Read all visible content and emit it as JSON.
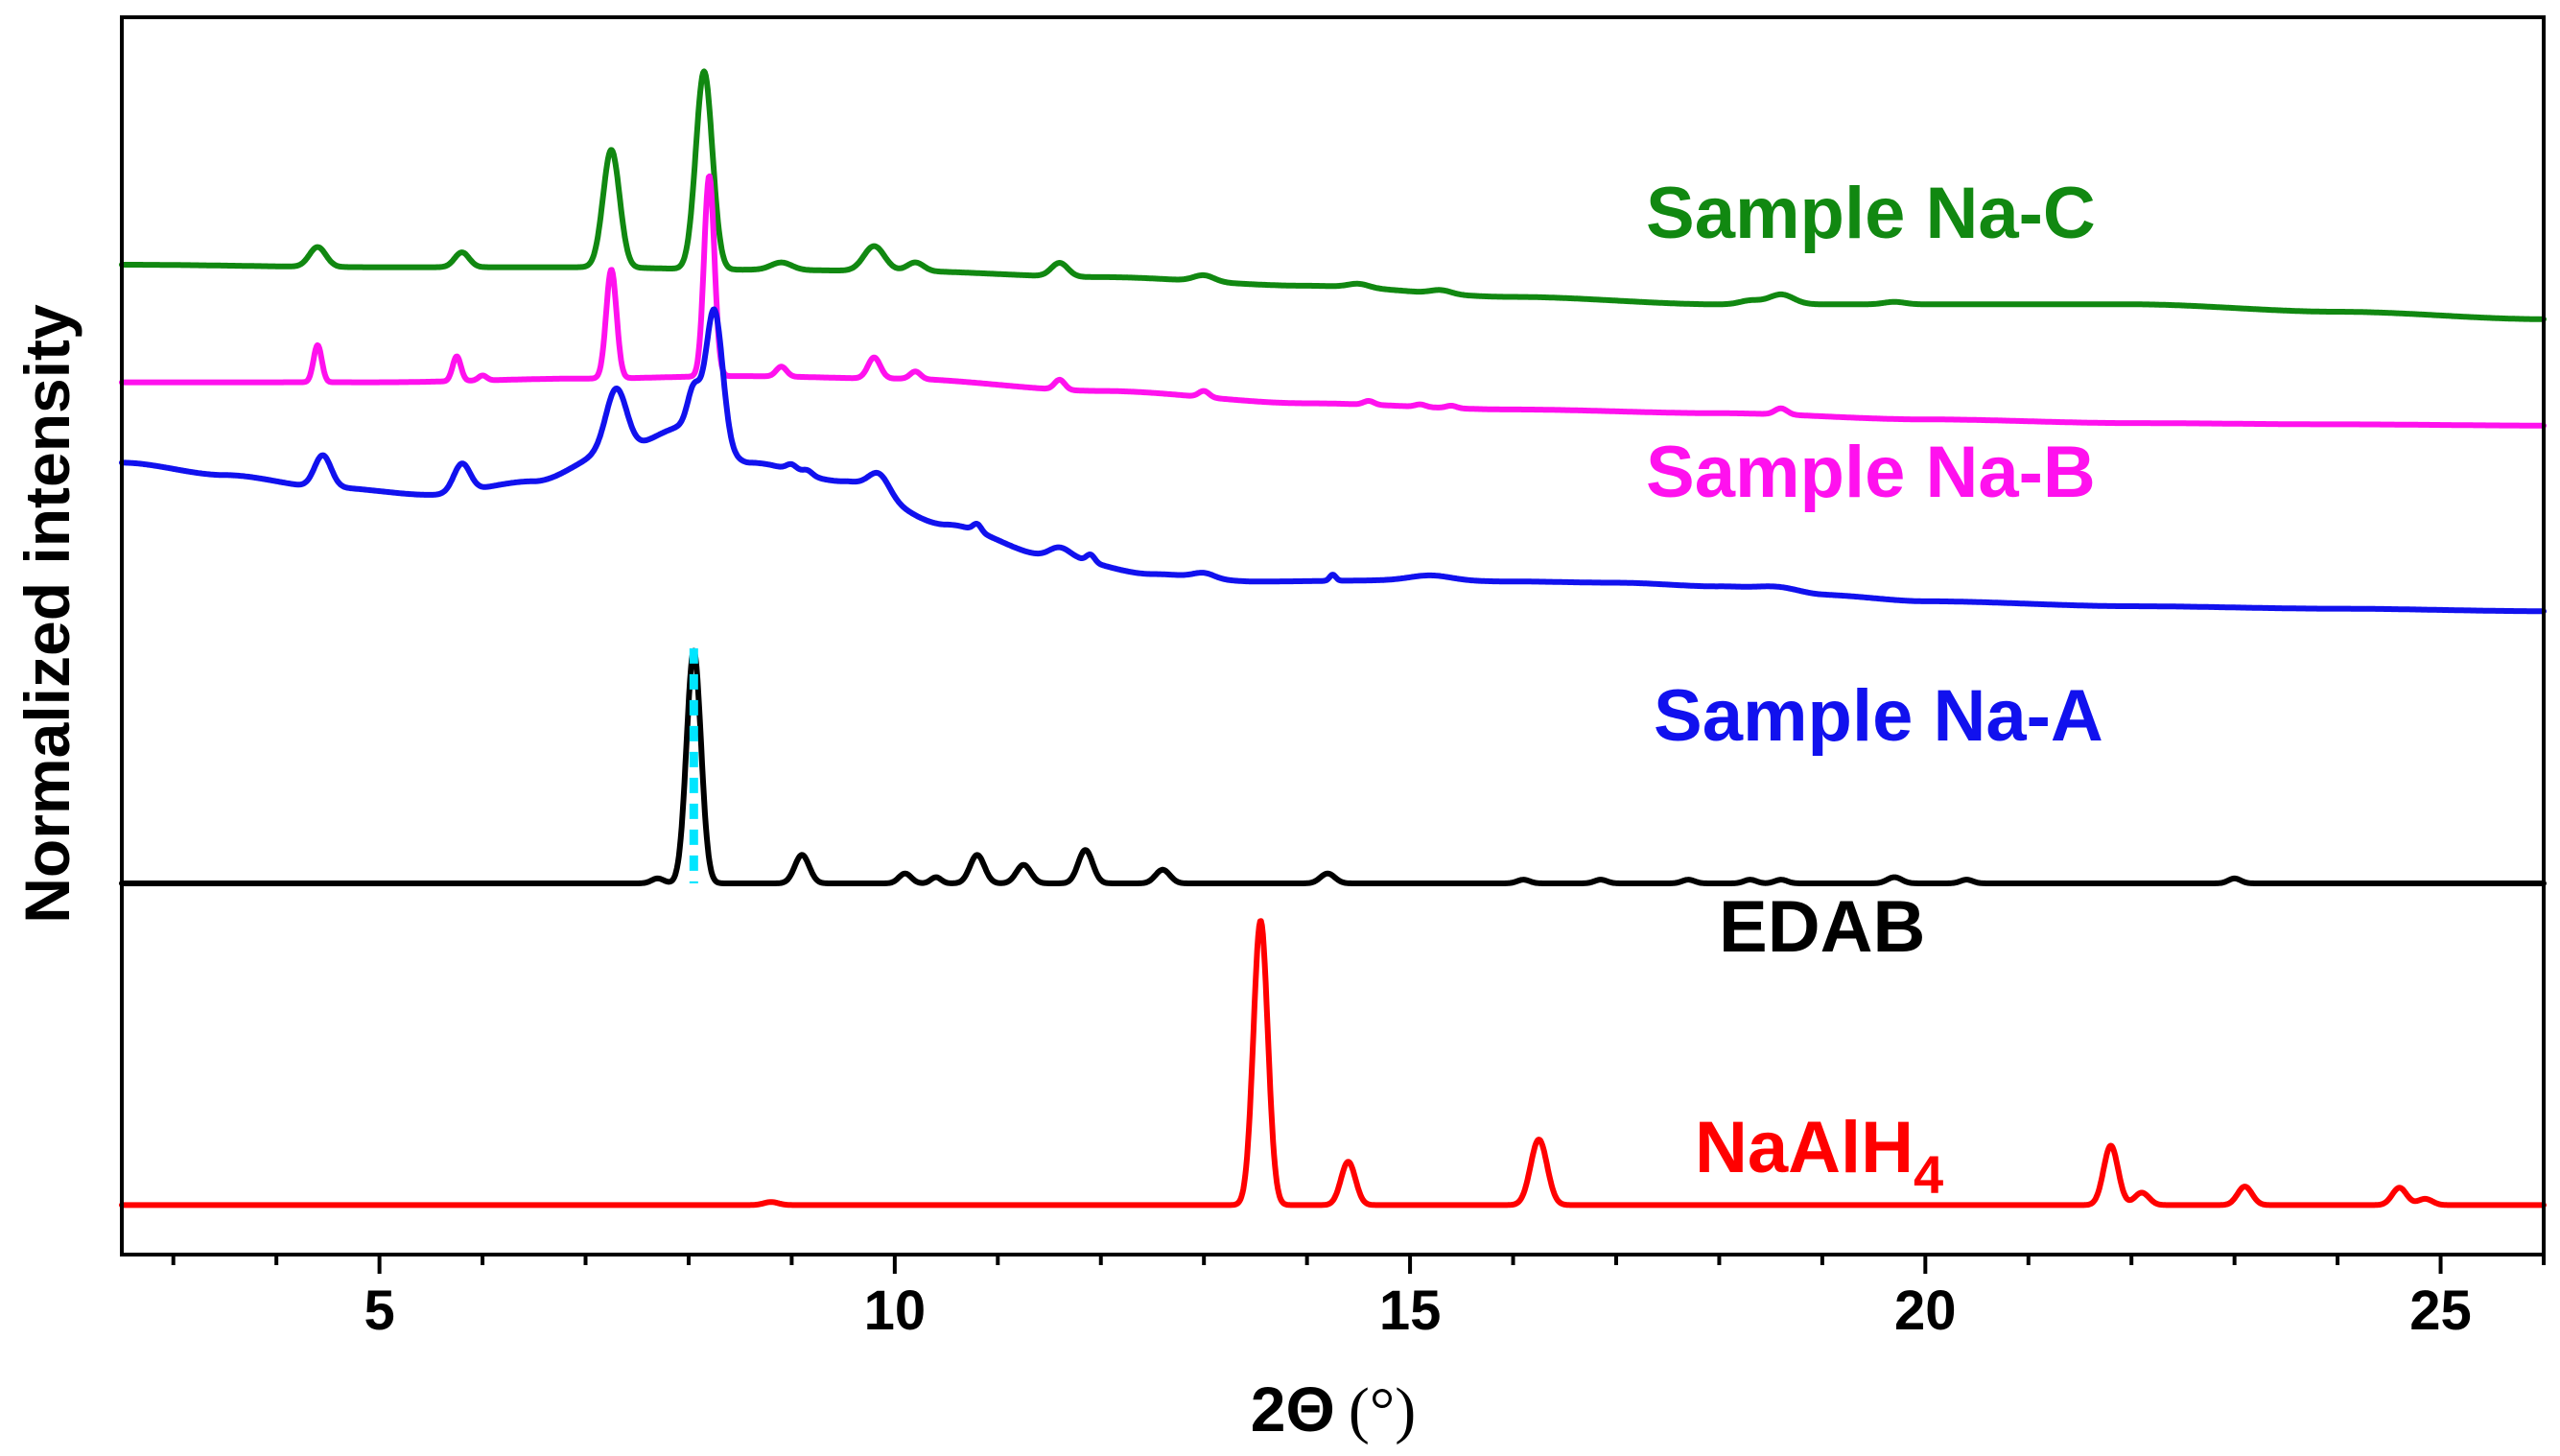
{
  "chart_data": {
    "type": "line",
    "xlabel": "2Θ",
    "xlabel_unit": "(°)",
    "ylabel": "Normalized intensity",
    "xlim": [
      2.5,
      26
    ],
    "ylim": [
      0,
      100
    ],
    "xticks": [
      5,
      10,
      15,
      20,
      25
    ],
    "xtick_labels": [
      "5",
      "10",
      "15",
      "20",
      "25"
    ],
    "yticks_shown": false,
    "grid": false,
    "legend": "inline labels",
    "reference_marker": {
      "name": "EDAB main peak",
      "x": 8.05,
      "y_from": 30,
      "y_to": 49,
      "color": "#00e5ff",
      "style": "dashed"
    },
    "series": [
      {
        "name": "Sample Na-C",
        "label": "Sample Na-C",
        "color": "#118811",
        "baseline": [
          [
            2.5,
            80.0
          ],
          [
            5,
            79.8
          ],
          [
            7,
            79.8
          ],
          [
            8.5,
            79.6
          ],
          [
            10,
            79.5
          ],
          [
            12,
            79.0
          ],
          [
            14,
            78.3
          ],
          [
            16,
            77.4
          ],
          [
            18,
            76.8
          ],
          [
            20,
            76.8
          ],
          [
            22,
            76.8
          ],
          [
            24,
            76.2
          ],
          [
            26,
            75.6
          ]
        ],
        "peaks": [
          [
            4.4,
            1.6,
            0.08
          ],
          [
            5.8,
            1.2,
            0.07
          ],
          [
            7.25,
            9.5,
            0.08
          ],
          [
            8.15,
            16.0,
            0.08
          ],
          [
            8.9,
            0.6,
            0.1
          ],
          [
            9.8,
            2.0,
            0.1
          ],
          [
            10.2,
            0.7,
            0.08
          ],
          [
            11.6,
            1.1,
            0.08
          ],
          [
            13.0,
            0.5,
            0.1
          ],
          [
            14.5,
            0.3,
            0.1
          ],
          [
            15.3,
            0.3,
            0.1
          ],
          [
            18.3,
            0.3,
            0.1
          ],
          [
            18.6,
            0.8,
            0.12
          ],
          [
            19.7,
            0.2,
            0.1
          ]
        ]
      },
      {
        "name": "Sample Na-B",
        "label": "Sample Na-B",
        "color": "#ff11ee",
        "baseline": [
          [
            2.5,
            70.5
          ],
          [
            5,
            70.5
          ],
          [
            7,
            70.8
          ],
          [
            8.5,
            71.0
          ],
          [
            10,
            70.8
          ],
          [
            12,
            69.8
          ],
          [
            14,
            68.8
          ],
          [
            16,
            68.3
          ],
          [
            18,
            68.0
          ],
          [
            20,
            67.5
          ],
          [
            22,
            67.2
          ],
          [
            24,
            67.1
          ],
          [
            26,
            67.0
          ]
        ],
        "peaks": [
          [
            4.4,
            3.0,
            0.04
          ],
          [
            5.75,
            2.0,
            0.04
          ],
          [
            6.0,
            0.4,
            0.04
          ],
          [
            7.25,
            8.8,
            0.05
          ],
          [
            8.2,
            16.2,
            0.05
          ],
          [
            8.9,
            0.8,
            0.05
          ],
          [
            9.8,
            1.7,
            0.06
          ],
          [
            10.2,
            0.6,
            0.05
          ],
          [
            11.6,
            0.8,
            0.05
          ],
          [
            13.0,
            0.5,
            0.05
          ],
          [
            14.6,
            0.3,
            0.05
          ],
          [
            15.1,
            0.2,
            0.05
          ],
          [
            15.4,
            0.2,
            0.05
          ],
          [
            18.6,
            0.5,
            0.06
          ]
        ]
      },
      {
        "name": "Sample Na-A",
        "label": "Sample Na-A",
        "color": "#1111ee",
        "baseline": [
          [
            2.5,
            64.0
          ],
          [
            3.5,
            63.0
          ],
          [
            4.5,
            62.0
          ],
          [
            5.5,
            61.4
          ],
          [
            6.5,
            62.5
          ],
          [
            7.3,
            65.0
          ],
          [
            8.0,
            67.0
          ],
          [
            8.6,
            64.0
          ],
          [
            9.5,
            62.5
          ],
          [
            10.5,
            59.0
          ],
          [
            11.5,
            56.5
          ],
          [
            12.5,
            55.0
          ],
          [
            13.5,
            54.4
          ],
          [
            15,
            54.5
          ],
          [
            16,
            54.4
          ],
          [
            17,
            54.3
          ],
          [
            18,
            54.0
          ],
          [
            19,
            53.3
          ],
          [
            20,
            52.8
          ],
          [
            22,
            52.4
          ],
          [
            24,
            52.2
          ],
          [
            26,
            52.0
          ]
        ],
        "peaks": [
          [
            4.45,
            2.6,
            0.08
          ],
          [
            5.8,
            2.3,
            0.08
          ],
          [
            7.3,
            5.0,
            0.1
          ],
          [
            8.05,
            3.0,
            0.06
          ],
          [
            8.25,
            10.5,
            0.08
          ],
          [
            9.0,
            0.5,
            0.05
          ],
          [
            9.15,
            0.4,
            0.05
          ],
          [
            9.85,
            1.6,
            0.1
          ],
          [
            10.8,
            0.6,
            0.04
          ],
          [
            11.6,
            0.7,
            0.1
          ],
          [
            11.9,
            0.6,
            0.04
          ],
          [
            13.0,
            0.4,
            0.1
          ],
          [
            14.25,
            0.5,
            0.03
          ],
          [
            15.2,
            0.4,
            0.2
          ],
          [
            18.6,
            0.4,
            0.2
          ]
        ]
      },
      {
        "name": "EDAB",
        "label": "EDAB",
        "color": "#000000",
        "baseline": [
          [
            2.5,
            30.0
          ],
          [
            26,
            30.0
          ]
        ],
        "peaks": [
          [
            7.7,
            0.4,
            0.06
          ],
          [
            8.05,
            18.8,
            0.07
          ],
          [
            9.1,
            2.3,
            0.07
          ],
          [
            10.1,
            0.8,
            0.06
          ],
          [
            10.4,
            0.5,
            0.05
          ],
          [
            10.8,
            2.3,
            0.07
          ],
          [
            11.25,
            1.5,
            0.07
          ],
          [
            11.85,
            2.7,
            0.07
          ],
          [
            12.6,
            1.1,
            0.07
          ],
          [
            14.2,
            0.8,
            0.07
          ],
          [
            16.1,
            0.3,
            0.06
          ],
          [
            16.85,
            0.3,
            0.06
          ],
          [
            17.7,
            0.3,
            0.06
          ],
          [
            18.3,
            0.3,
            0.06
          ],
          [
            18.6,
            0.3,
            0.06
          ],
          [
            19.7,
            0.5,
            0.07
          ],
          [
            20.4,
            0.3,
            0.06
          ],
          [
            23.0,
            0.4,
            0.06
          ]
        ]
      },
      {
        "name": "NaAlH4",
        "label": "NaAlH",
        "label_subscript": "4",
        "color": "#ff0000",
        "baseline": [
          [
            2.5,
            4.0
          ],
          [
            26,
            4.0
          ]
        ],
        "peaks": [
          [
            8.8,
            0.25,
            0.07
          ],
          [
            13.55,
            23.0,
            0.07
          ],
          [
            14.4,
            3.5,
            0.07
          ],
          [
            16.25,
            5.3,
            0.08
          ],
          [
            21.8,
            4.8,
            0.07
          ],
          [
            22.1,
            1.0,
            0.07
          ],
          [
            23.1,
            1.5,
            0.07
          ],
          [
            24.6,
            1.4,
            0.07
          ],
          [
            24.85,
            0.5,
            0.07
          ]
        ]
      }
    ]
  }
}
